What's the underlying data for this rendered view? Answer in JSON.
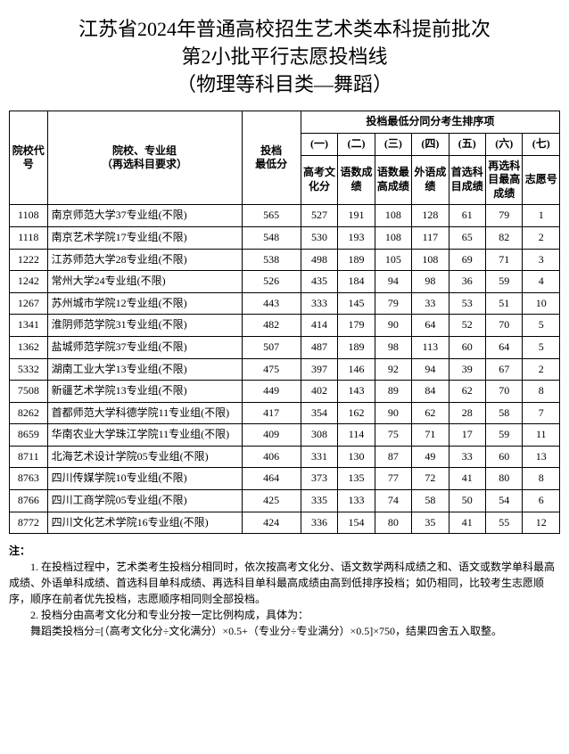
{
  "title_line1": "江苏省2024年普通高校招生艺术类本科提前批次",
  "title_line2": "第2小批平行志愿投档线",
  "title_line3": "（物理等科目类—舞蹈）",
  "header": {
    "col_code": "院校代号",
    "col_name": "院校、专业组\n（再选科目要求）",
    "col_score": "投档\n最低分",
    "col_group": "投档最低分同分考生排序项",
    "sub_num": [
      "(一)",
      "(二)",
      "(三)",
      "(四)",
      "(五)",
      "(六)",
      "(七)"
    ],
    "sub_label": [
      "高考文化分",
      "语数成绩",
      "语数最高成绩",
      "外语成绩",
      "首选科目成绩",
      "再选科目最高成绩",
      "志愿号"
    ]
  },
  "rows": [
    {
      "code": "1108",
      "name": "南京师范大学37专业组(不限)",
      "score": "565",
      "v": [
        "527",
        "191",
        "108",
        "128",
        "61",
        "79",
        "1"
      ]
    },
    {
      "code": "1118",
      "name": "南京艺术学院17专业组(不限)",
      "score": "548",
      "v": [
        "530",
        "193",
        "108",
        "117",
        "65",
        "82",
        "2"
      ]
    },
    {
      "code": "1222",
      "name": "江苏师范大学28专业组(不限)",
      "score": "538",
      "v": [
        "498",
        "189",
        "105",
        "108",
        "69",
        "71",
        "3"
      ]
    },
    {
      "code": "1242",
      "name": "常州大学24专业组(不限)",
      "score": "526",
      "v": [
        "435",
        "184",
        "94",
        "98",
        "36",
        "59",
        "4"
      ]
    },
    {
      "code": "1267",
      "name": "苏州城市学院12专业组(不限)",
      "score": "443",
      "v": [
        "333",
        "145",
        "79",
        "33",
        "53",
        "51",
        "10"
      ]
    },
    {
      "code": "1341",
      "name": "淮阴师范学院31专业组(不限)",
      "score": "482",
      "v": [
        "414",
        "179",
        "90",
        "64",
        "52",
        "70",
        "5"
      ]
    },
    {
      "code": "1362",
      "name": "盐城师范学院37专业组(不限)",
      "score": "507",
      "v": [
        "487",
        "189",
        "98",
        "113",
        "60",
        "64",
        "5"
      ]
    },
    {
      "code": "5332",
      "name": "湖南工业大学13专业组(不限)",
      "score": "475",
      "v": [
        "397",
        "146",
        "92",
        "94",
        "39",
        "67",
        "2"
      ]
    },
    {
      "code": "7508",
      "name": "新疆艺术学院13专业组(不限)",
      "score": "449",
      "v": [
        "402",
        "143",
        "89",
        "84",
        "62",
        "70",
        "8"
      ]
    },
    {
      "code": "8262",
      "name": "首都师范大学科德学院11专业组(不限)",
      "score": "417",
      "v": [
        "354",
        "162",
        "90",
        "62",
        "28",
        "58",
        "7"
      ]
    },
    {
      "code": "8659",
      "name": "华南农业大学珠江学院11专业组(不限)",
      "score": "409",
      "v": [
        "308",
        "114",
        "75",
        "71",
        "17",
        "59",
        "11"
      ]
    },
    {
      "code": "8711",
      "name": "北海艺术设计学院05专业组(不限)",
      "score": "406",
      "v": [
        "331",
        "130",
        "87",
        "49",
        "33",
        "60",
        "13"
      ]
    },
    {
      "code": "8763",
      "name": "四川传媒学院10专业组(不限)",
      "score": "464",
      "v": [
        "373",
        "135",
        "77",
        "72",
        "41",
        "80",
        "8"
      ]
    },
    {
      "code": "8766",
      "name": "四川工商学院05专业组(不限)",
      "score": "425",
      "v": [
        "335",
        "133",
        "74",
        "58",
        "50",
        "54",
        "6"
      ]
    },
    {
      "code": "8772",
      "name": "四川文化艺术学院16专业组(不限)",
      "score": "424",
      "v": [
        "336",
        "154",
        "80",
        "35",
        "41",
        "55",
        "12"
      ]
    }
  ],
  "notes": {
    "title": "注：",
    "p1": "1. 在投档过程中，艺术类考生投档分相同时，依次按高考文化分、语文数学两科成绩之和、语文或数学单科最高成绩、外语单科成绩、首选科目单科成绩、再选科目单科最高成绩由高到低排序投档；如仍相同，比较考生志愿顺序，顺序在前者优先投档，志愿顺序相同则全部投档。",
    "p2": "2. 投档分由高考文化分和专业分按一定比例构成，具体为：",
    "p3": "舞蹈类投档分=[（高考文化分÷文化满分）×0.5+（专业分÷专业满分）×0.5]×750，结果四舍五入取整。"
  }
}
